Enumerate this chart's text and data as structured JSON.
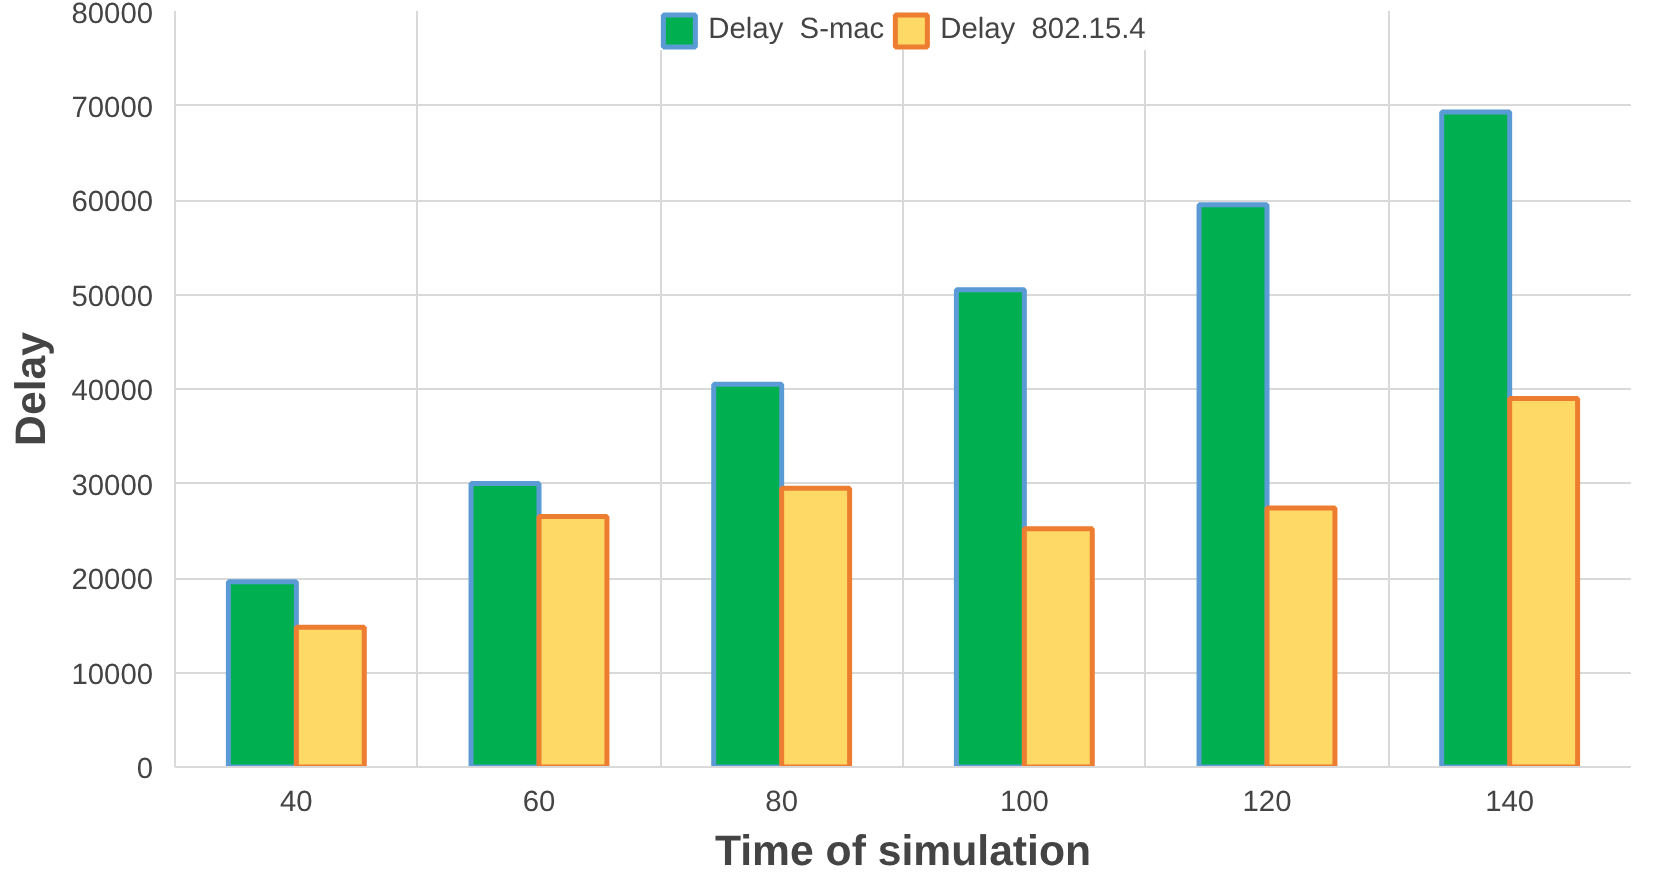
{
  "chart_data": {
    "type": "bar",
    "xlabel": "Time of simulation",
    "ylabel": "Delay",
    "categories": [
      "40",
      "60",
      "80",
      "100",
      "120",
      "140"
    ],
    "series": [
      {
        "name": "Delay  S-mac",
        "color": "#00b050",
        "values": [
          19600,
          30000,
          40500,
          50500,
          59500,
          69300
        ]
      },
      {
        "name": "Delay  802.15.4",
        "color": "#ffd966",
        "values": [
          14800,
          26500,
          29500,
          25200,
          27400,
          39000
        ]
      }
    ],
    "ylim": [
      0,
      80000
    ],
    "yticks": [
      0,
      10000,
      20000,
      30000,
      40000,
      50000,
      60000,
      70000,
      80000
    ],
    "grid": true,
    "legend": "top"
  }
}
